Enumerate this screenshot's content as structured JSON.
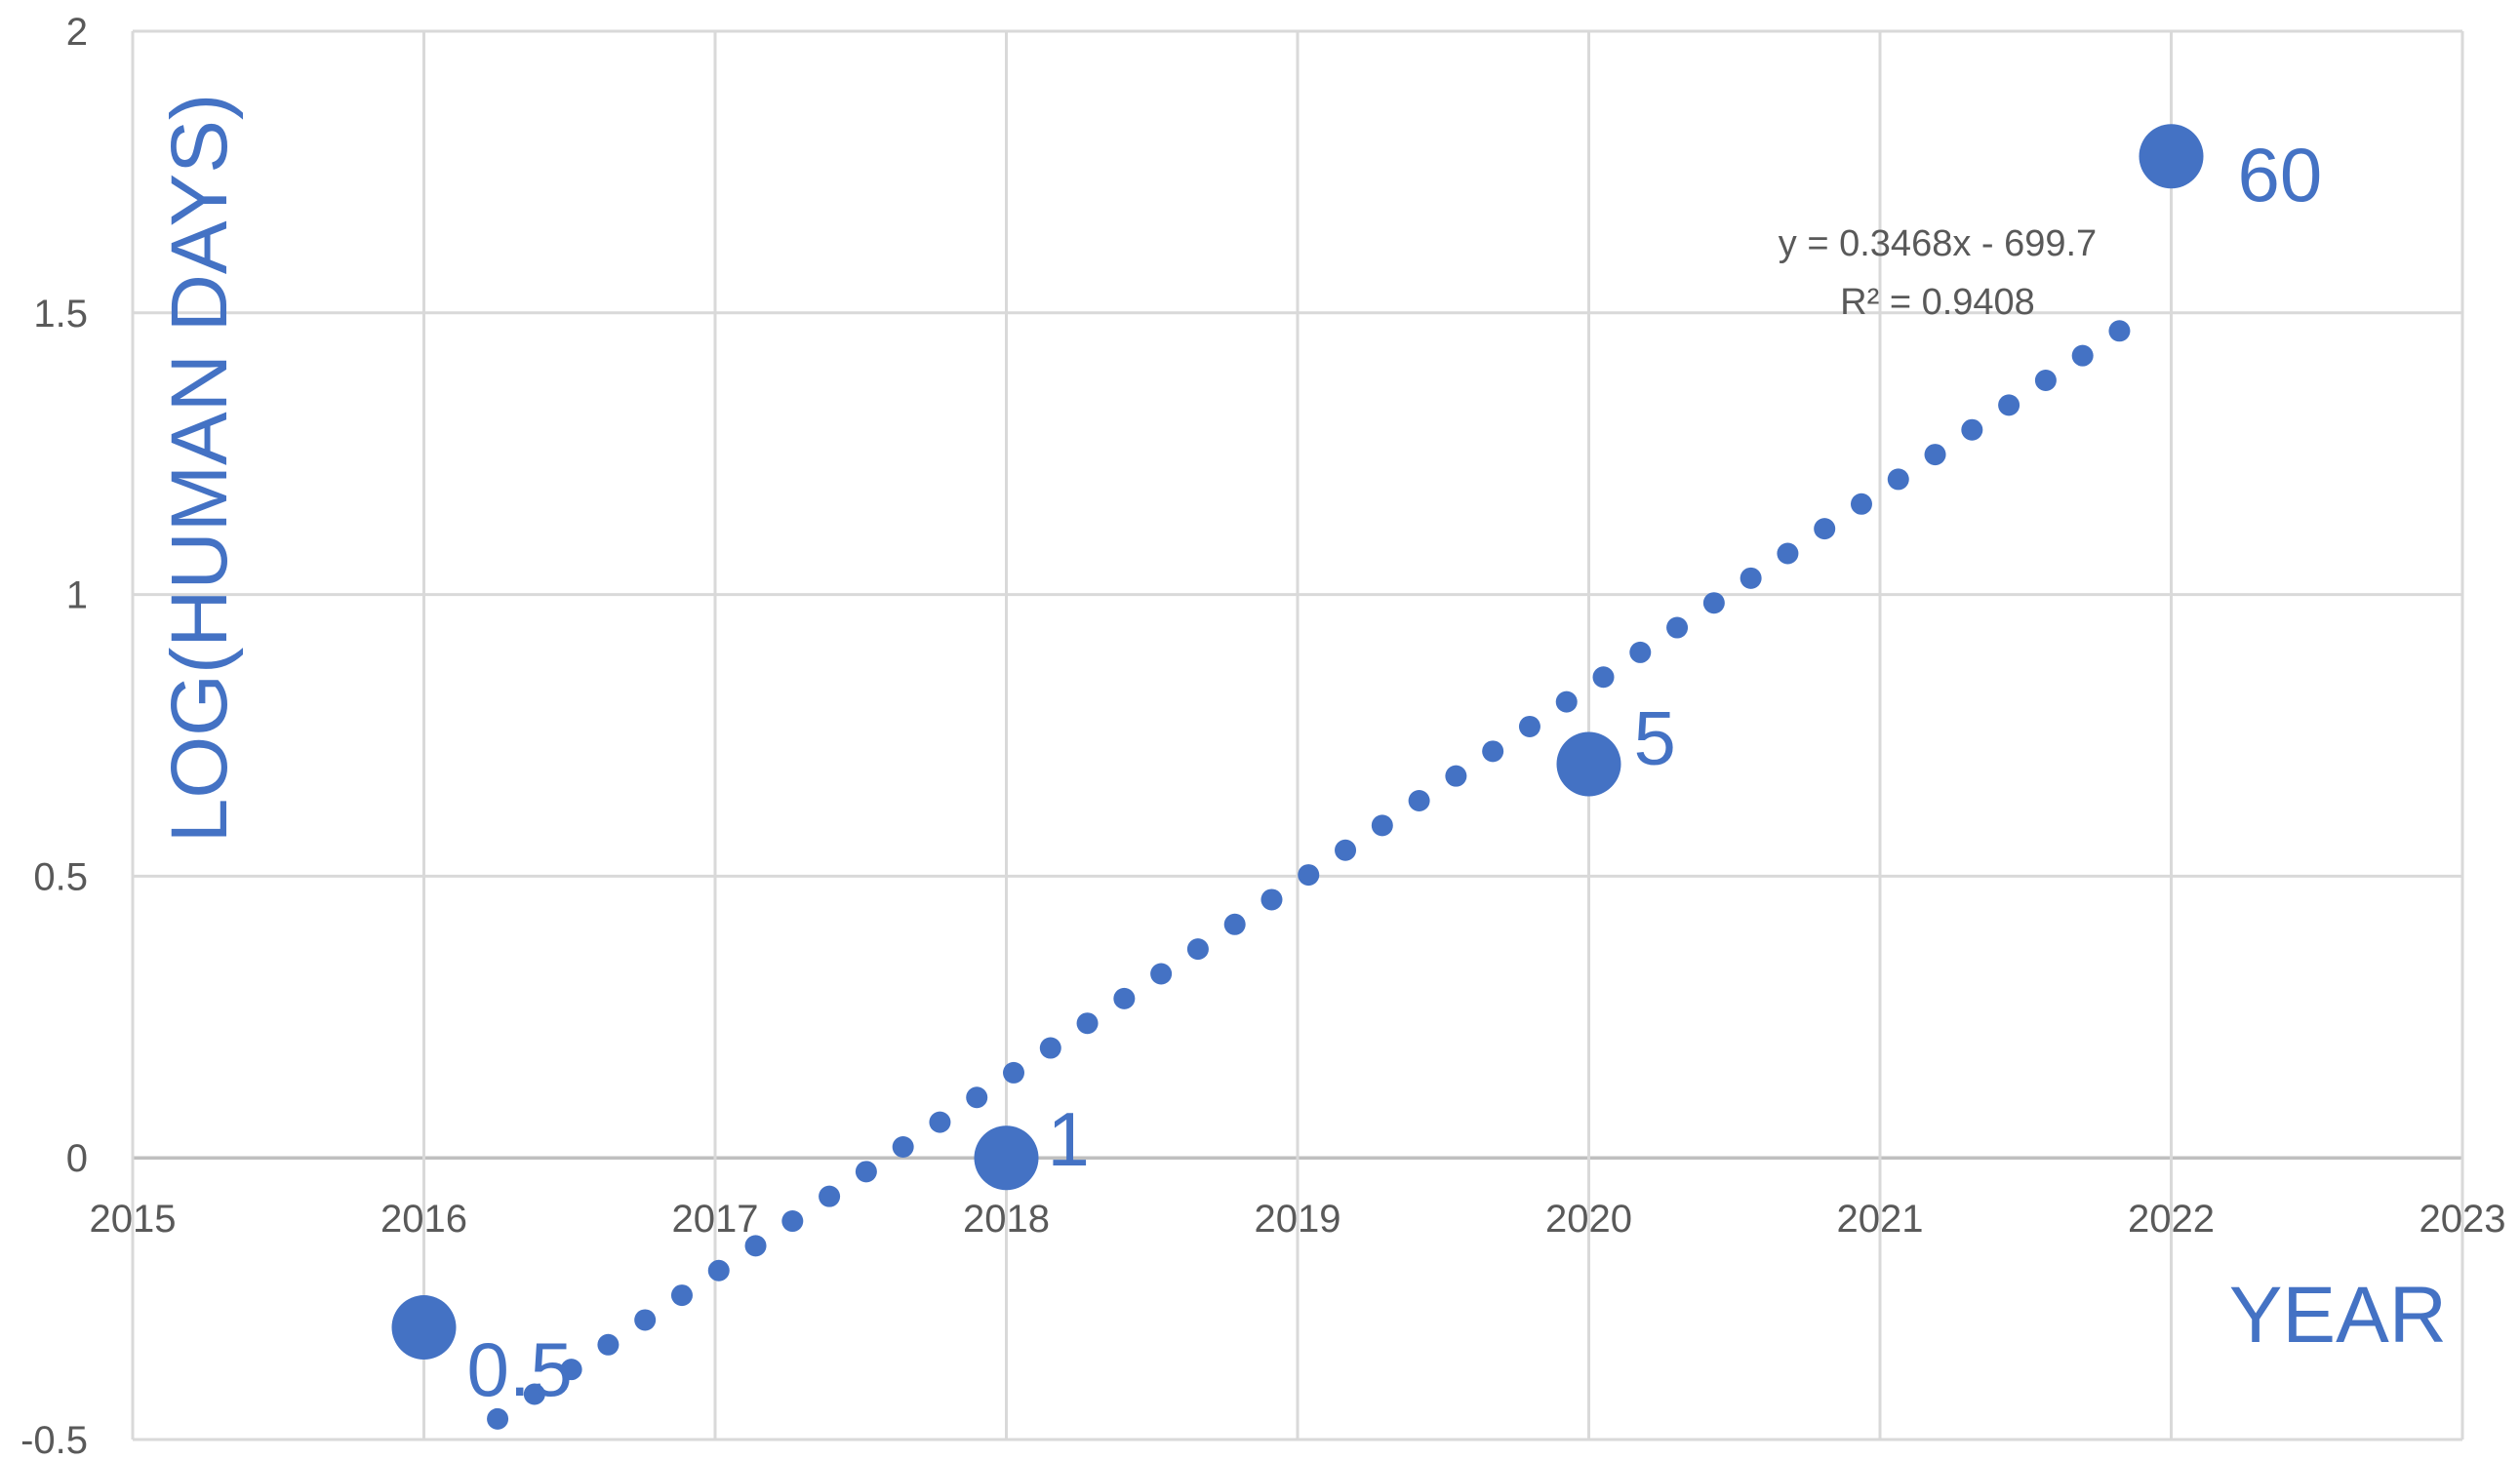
{
  "chart_data": {
    "type": "scatter",
    "x": [
      2016,
      2018,
      2020,
      2022
    ],
    "y": [
      -0.301,
      0.0,
      0.699,
      1.778
    ],
    "point_labels": [
      "0.5",
      "1",
      "5",
      "60"
    ],
    "xlabel": "YEAR",
    "ylabel": "LOG(HUMAN DAYS)",
    "xlim": [
      2015,
      2023
    ],
    "ylim": [
      -0.5,
      2
    ],
    "x_ticks": [
      "2015",
      "2016",
      "2017",
      "2018",
      "2019",
      "2020",
      "2021",
      "2022",
      "2023"
    ],
    "y_ticks": [
      "-0.5",
      "0",
      "0.5",
      "1",
      "1.5",
      "2"
    ],
    "grid": true,
    "trendline": {
      "type": "linear",
      "slope": 0.3468,
      "intercept": -699.7,
      "x_range": [
        2016,
        2021.9
      ],
      "equation": "y = 0.3468x - 699.7",
      "r_squared": "R² = 0.9408"
    },
    "colors": {
      "series": "#4472C4",
      "grid": "#D9D9D9",
      "tick_text": "#595959"
    }
  }
}
